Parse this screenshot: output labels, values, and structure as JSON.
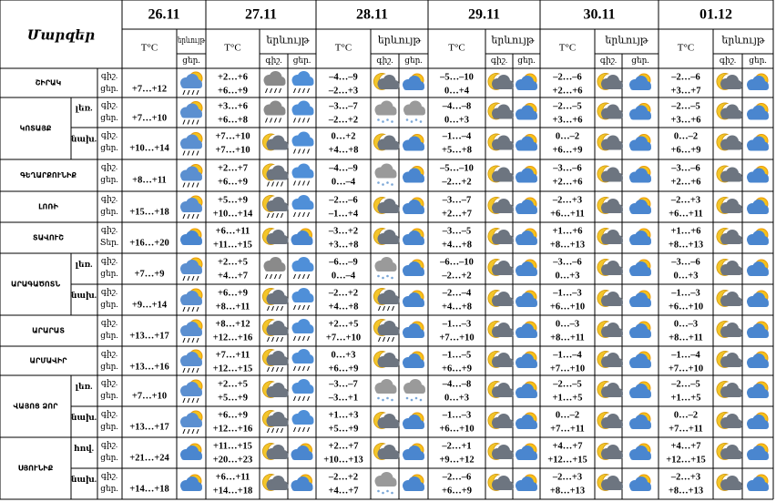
{
  "header": {
    "title": "Մարզեր",
    "columns": [
      {
        "date": "26.11",
        "temp": "T°C",
        "phenomenon": "երևույթ",
        "parts": [
          "ցեր."
        ]
      },
      {
        "date": "27.11",
        "temp": "T°C",
        "phenomenon": "երևույթ",
        "parts": [
          "գիշ.",
          "ցեր."
        ]
      },
      {
        "date": "28.11",
        "temp": "T°C",
        "phenomenon": "երևույթ",
        "parts": [
          "գիշ.",
          "ցեր."
        ]
      },
      {
        "date": "29.11",
        "temp": "T°C",
        "phenomenon": "երևույթ",
        "parts": [
          "գիշ.",
          "ցեր."
        ]
      },
      {
        "date": "30.11",
        "temp": "T°C",
        "phenomenon": "երևույթ",
        "parts": [
          "գիշ.",
          "ցեր."
        ]
      },
      {
        "date": "01.12",
        "temp": "T°C",
        "phenomenon": "երևույթ",
        "parts": [
          "գիշ.",
          "ցեր."
        ]
      }
    ]
  },
  "regions": [
    {
      "name": "ՇԻՐԱԿ",
      "rows": [
        {
          "labels": [
            "գիշ.",
            "ցեր."
          ],
          "first": "+7…+12",
          "temps": [
            [
              "+2…+6",
              "+6…+9"
            ],
            [
              "–4…–9",
              "–2…+3"
            ],
            [
              "–5…–10",
              "0…+4"
            ],
            [
              "–2…–6",
              "+2…+6"
            ],
            [
              "–2…–6",
              "+3…+7"
            ]
          ]
        }
      ]
    },
    {
      "name": "ԿՈՏԱՅՔ",
      "rows": [
        {
          "zone": "լեռ.",
          "labels": [
            "գիշ.",
            "ցեր."
          ],
          "first": "+7…+10",
          "temps": [
            [
              "+3…+6",
              "+6…+8"
            ],
            [
              "–3…–7",
              "–2…+2"
            ],
            [
              "–4…–8",
              "0…+3"
            ],
            [
              "–2…–5",
              "+3…+6"
            ],
            [
              "–2…–5",
              "+3…+6"
            ]
          ]
        },
        {
          "zone": "նախ.",
          "labels": [
            "գիշ.",
            "ցեր."
          ],
          "first": "+10…+14",
          "temps": [
            [
              "+7…+10",
              "+7…+10"
            ],
            [
              "0…+2",
              "+4…+8"
            ],
            [
              "–1…–4",
              "+5…+8"
            ],
            [
              "0…–2",
              "+6…+9"
            ],
            [
              "0…–2",
              "+6…+9"
            ]
          ]
        }
      ]
    },
    {
      "name": "ԳԵՂԱՐՔՈՒՆԻՔ",
      "rows": [
        {
          "labels": [
            "գիշ.",
            "ցեր."
          ],
          "first": "+8…+11",
          "temps": [
            [
              "+2…+7",
              "+6…+9"
            ],
            [
              "–4…–9",
              "0…–4"
            ],
            [
              "–5…–10",
              "–2…+2"
            ],
            [
              "–3…–6",
              "+2…+6"
            ],
            [
              "–3…–6",
              "+2…+6"
            ]
          ]
        }
      ]
    },
    {
      "name": "ԼՈՌԻ",
      "rows": [
        {
          "labels": [
            "գիշ.",
            "ցեր."
          ],
          "first": "+15…+18",
          "temps": [
            [
              "+5…+9",
              "+10…+14"
            ],
            [
              "–2…–6",
              "–1…+4"
            ],
            [
              "–3…–7",
              "+2…+7"
            ],
            [
              "–2…+3",
              "+6…+11"
            ],
            [
              "–2…+3",
              "+6…+11"
            ]
          ]
        }
      ]
    },
    {
      "name": "ՏԱՎՈՒՇ",
      "rows": [
        {
          "labels": [
            "գիշ.",
            "Տեր."
          ],
          "first": "+16…+20",
          "temps": [
            [
              "+6…+11",
              "+11…+15"
            ],
            [
              "–3…+2",
              "+3…+8"
            ],
            [
              "–3…–5",
              "+4…+8"
            ],
            [
              "+1…+6",
              "+8…+13"
            ],
            [
              "+1…+6",
              "+8…+13"
            ]
          ]
        }
      ]
    },
    {
      "name": "ԱՐԱԳԱԾՈՏՆ",
      "rows": [
        {
          "zone": "լեռ.",
          "labels": [
            "գիշ.",
            "ցեր."
          ],
          "first": "+7…+9",
          "temps": [
            [
              "+2…+5",
              "+4…+7"
            ],
            [
              "–6…–9",
              "0…–4"
            ],
            [
              "–6…–10",
              "–2…+2"
            ],
            [
              "–3…–6",
              "0…+3"
            ],
            [
              "–3…–6",
              "0…+3"
            ]
          ]
        },
        {
          "zone": "նախ.",
          "labels": [
            "գիշ.",
            "ցեր."
          ],
          "first": "+9…+14",
          "temps": [
            [
              "+6…+9",
              "+8…+11"
            ],
            [
              "–2…+2",
              "+4…+8"
            ],
            [
              "–2…–4",
              "+4…+8"
            ],
            [
              "–1…–3",
              "+6…+10"
            ],
            [
              "–1…–3",
              "+6…+10"
            ]
          ]
        }
      ]
    },
    {
      "name": "ԱՐԱՐԱՏ",
      "rows": [
        {
          "labels": [
            "գիշ.",
            "ցեր."
          ],
          "first": "+13…+17",
          "temps": [
            [
              "+8…+12",
              "+12…+16"
            ],
            [
              "+2…+5",
              "+7…+10"
            ],
            [
              "–1…–3",
              "+7…+10"
            ],
            [
              "0…–3",
              "+8…+11"
            ],
            [
              "0…–3",
              "+8…+11"
            ]
          ]
        }
      ]
    },
    {
      "name": "ԱՐՄԱՎԻՐ",
      "rows": [
        {
          "labels": [
            "գիշ.",
            "ցեր."
          ],
          "first": "+13…+16",
          "temps": [
            [
              "+7…+11",
              "+12…+15"
            ],
            [
              "0…+3",
              "+6…+9"
            ],
            [
              "–1…–5",
              "+6…+9"
            ],
            [
              "–1…–4",
              "+7…+10"
            ],
            [
              "–1…–4",
              "+7…+10"
            ]
          ]
        }
      ]
    },
    {
      "name": "ՎԱՅՈՑ ՁՈՐ",
      "rows": [
        {
          "zone": "լեռ.",
          "labels": [
            "գիշ.",
            "ցեր."
          ],
          "first": "+7…+10",
          "temps": [
            [
              "+2…+5",
              "+5…+9"
            ],
            [
              "–3…–7",
              "–3…+1"
            ],
            [
              "–4…–8",
              "0…+3"
            ],
            [
              "–2…–5",
              "+1…+5"
            ],
            [
              "–2…–5",
              "+1…+5"
            ]
          ]
        },
        {
          "zone": "նախ.",
          "labels": [
            "գիշ.",
            "ցեր."
          ],
          "first": "+13…+17",
          "temps": [
            [
              "+6…+9",
              "+12…+16"
            ],
            [
              "+1…+3",
              "+5…+9"
            ],
            [
              "–1…–3",
              "+6…+10"
            ],
            [
              "0…–2",
              "+7…+11"
            ],
            [
              "0…–2",
              "+7…+11"
            ]
          ]
        }
      ]
    },
    {
      "name": "ՍՅՈՒՆԻՔ",
      "rows": [
        {
          "zone": "հով.",
          "labels": [
            "գիշ.",
            "ցեր."
          ],
          "first": "+21…+24",
          "temps": [
            [
              "+11…+15",
              "+20…+23"
            ],
            [
              "+2…+7",
              "+10…+13"
            ],
            [
              "–2…+1",
              "+9…+12"
            ],
            [
              "+4…+7",
              "+12…+15"
            ],
            [
              "+4…+7",
              "+12…+15"
            ]
          ]
        },
        {
          "zone": "նախ.",
          "labels": [
            "գիշ.",
            "ցեր."
          ],
          "first": "+14…+18",
          "temps": [
            [
              "+6…+11",
              "+14…+18"
            ],
            [
              "–2…+2",
              "+4…+7"
            ],
            [
              "–2…–6",
              "+6…+9"
            ],
            [
              "–2…+3",
              "+8…+13"
            ],
            [
              "–2…+3",
              "+8…+13"
            ]
          ]
        }
      ]
    }
  ]
}
